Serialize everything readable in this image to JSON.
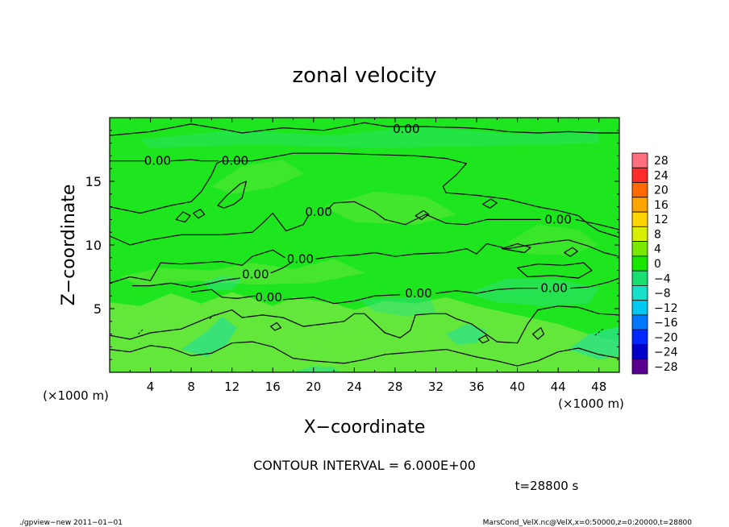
{
  "chart_data": {
    "type": "heatmap",
    "title": "zonal velocity",
    "xlabel": "X−coordinate",
    "ylabel": "Z−coordinate",
    "x_unit_label": "(×1000 m)",
    "z_unit_label": "(×1000 m)",
    "xlim": [
      0,
      50
    ],
    "ylim": [
      0,
      20
    ],
    "x_ticks": [
      4,
      8,
      12,
      16,
      20,
      24,
      28,
      32,
      36,
      40,
      44,
      48
    ],
    "x_tick_labels": [
      "4",
      "8",
      "12",
      "16",
      "20",
      "24",
      "28",
      "32",
      "36",
      "40",
      "44",
      "48"
    ],
    "y_ticks": [
      5,
      10,
      15
    ],
    "y_tick_labels": [
      "5",
      "10",
      "15"
    ],
    "contour_interval_text": "CONTOUR INTERVAL = 6.000E+00",
    "time_text": "t=28800 s",
    "contour_labels": [
      {
        "text": "0.00",
        "x": 29.1,
        "z": 19.1
      },
      {
        "text": "0.00",
        "x": 4.7,
        "z": 16.6
      },
      {
        "text": "0.00",
        "x": 12.3,
        "z": 16.6
      },
      {
        "text": "0.00",
        "x": 20.5,
        "z": 12.6
      },
      {
        "text": "0.00",
        "x": 44.0,
        "z": 12.0
      },
      {
        "text": "0.00",
        "x": 18.7,
        "z": 8.9
      },
      {
        "text": "0.00",
        "x": 14.3,
        "z": 7.7
      },
      {
        "text": "0.00",
        "x": 15.6,
        "z": 5.9
      },
      {
        "text": "0.00",
        "x": 30.3,
        "z": 6.2
      },
      {
        "text": "0.00",
        "x": 43.6,
        "z": 6.6
      }
    ],
    "colorbar": {
      "levels": [
        "28",
        "24",
        "20",
        "16",
        "12",
        "8",
        "4",
        "0",
        "−4",
        "−8",
        "−12",
        "−16",
        "−20",
        "−24",
        "−28"
      ],
      "colors": [
        "#ff6f7d",
        "#ff2a2a",
        "#ff6a00",
        "#ffa500",
        "#ffd400",
        "#d8f000",
        "#78e800",
        "#18e800",
        "#18e070",
        "#16e0c8",
        "#00c8f0",
        "#0078ff",
        "#0028ff",
        "#0000c8",
        "#5a0090"
      ]
    },
    "field_colors": {
      "base": "#1ee61e",
      "positive": "#6ee640",
      "negative": "#2ce08c"
    }
  },
  "footer": {
    "left": "./gpview−new   2011−01−01",
    "right": "MarsCond_VelX.nc@VelX,x=0:50000,z=0:20000,t=28800"
  }
}
